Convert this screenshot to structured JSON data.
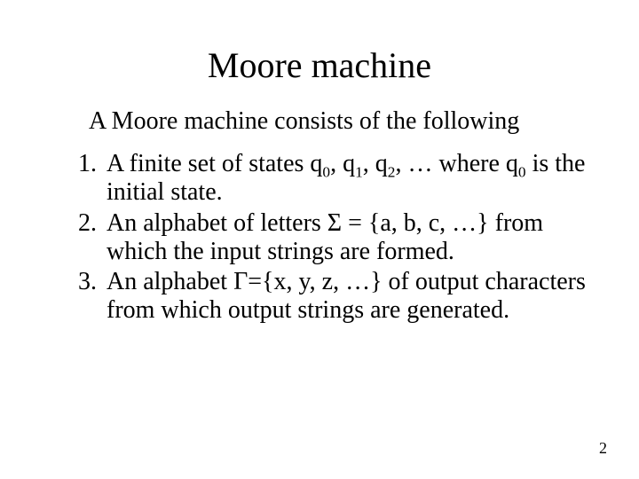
{
  "title": "Moore machine",
  "intro": "A Moore machine consists of the following",
  "items": [
    {
      "pre": "A finite set of states q",
      "s0": "0",
      "mid1": ", q",
      "s1": "1",
      "mid2": ", q",
      "s2": "2",
      "mid3": ", … where q",
      "s3": "0",
      "post": " is the initial state."
    },
    {
      "text": "An alphabet of letters Σ = {a, b, c, …} from which the input strings are formed."
    },
    {
      "text": "An alphabet Γ={x, y, z, …} of output characters from which output strings are generated."
    }
  ],
  "page_number": "2",
  "colors": {
    "bg": "#ffffff",
    "text": "#000000"
  },
  "fonts": {
    "title_pt": 40,
    "body_pt": 28,
    "pagenum_pt": 18
  }
}
